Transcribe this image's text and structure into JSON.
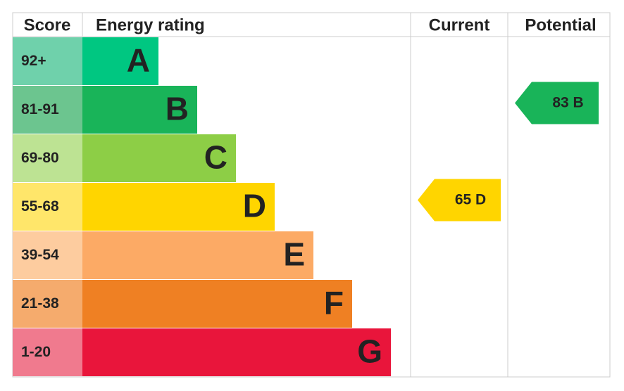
{
  "header": {
    "score": "Score",
    "energy_rating": "Energy rating",
    "current": "Current",
    "potential": "Potential"
  },
  "bands": [
    {
      "score": "92+",
      "rating": "A",
      "color": "#00c781",
      "score_color": "#6fd1ab"
    },
    {
      "score": "81-91",
      "rating": "B",
      "color": "#19b459",
      "score_color": "#6cc58f"
    },
    {
      "score": "69-80",
      "rating": "C",
      "color": "#8dce46",
      "score_color": "#bde393"
    },
    {
      "score": "55-68",
      "rating": "D",
      "color": "#ffd500",
      "score_color": "#ffe66a"
    },
    {
      "score": "39-54",
      "rating": "E",
      "color": "#fcaa65",
      "score_color": "#fdcc9f"
    },
    {
      "score": "21-38",
      "rating": "F",
      "color": "#ef8023",
      "score_color": "#f5ab6d"
    },
    {
      "score": "1-20",
      "rating": "G",
      "color": "#e9153b",
      "score_color": "#f07a8e"
    }
  ],
  "current": {
    "score": "65",
    "rating": "D"
  },
  "potential": {
    "score": "83",
    "rating": "B"
  }
}
